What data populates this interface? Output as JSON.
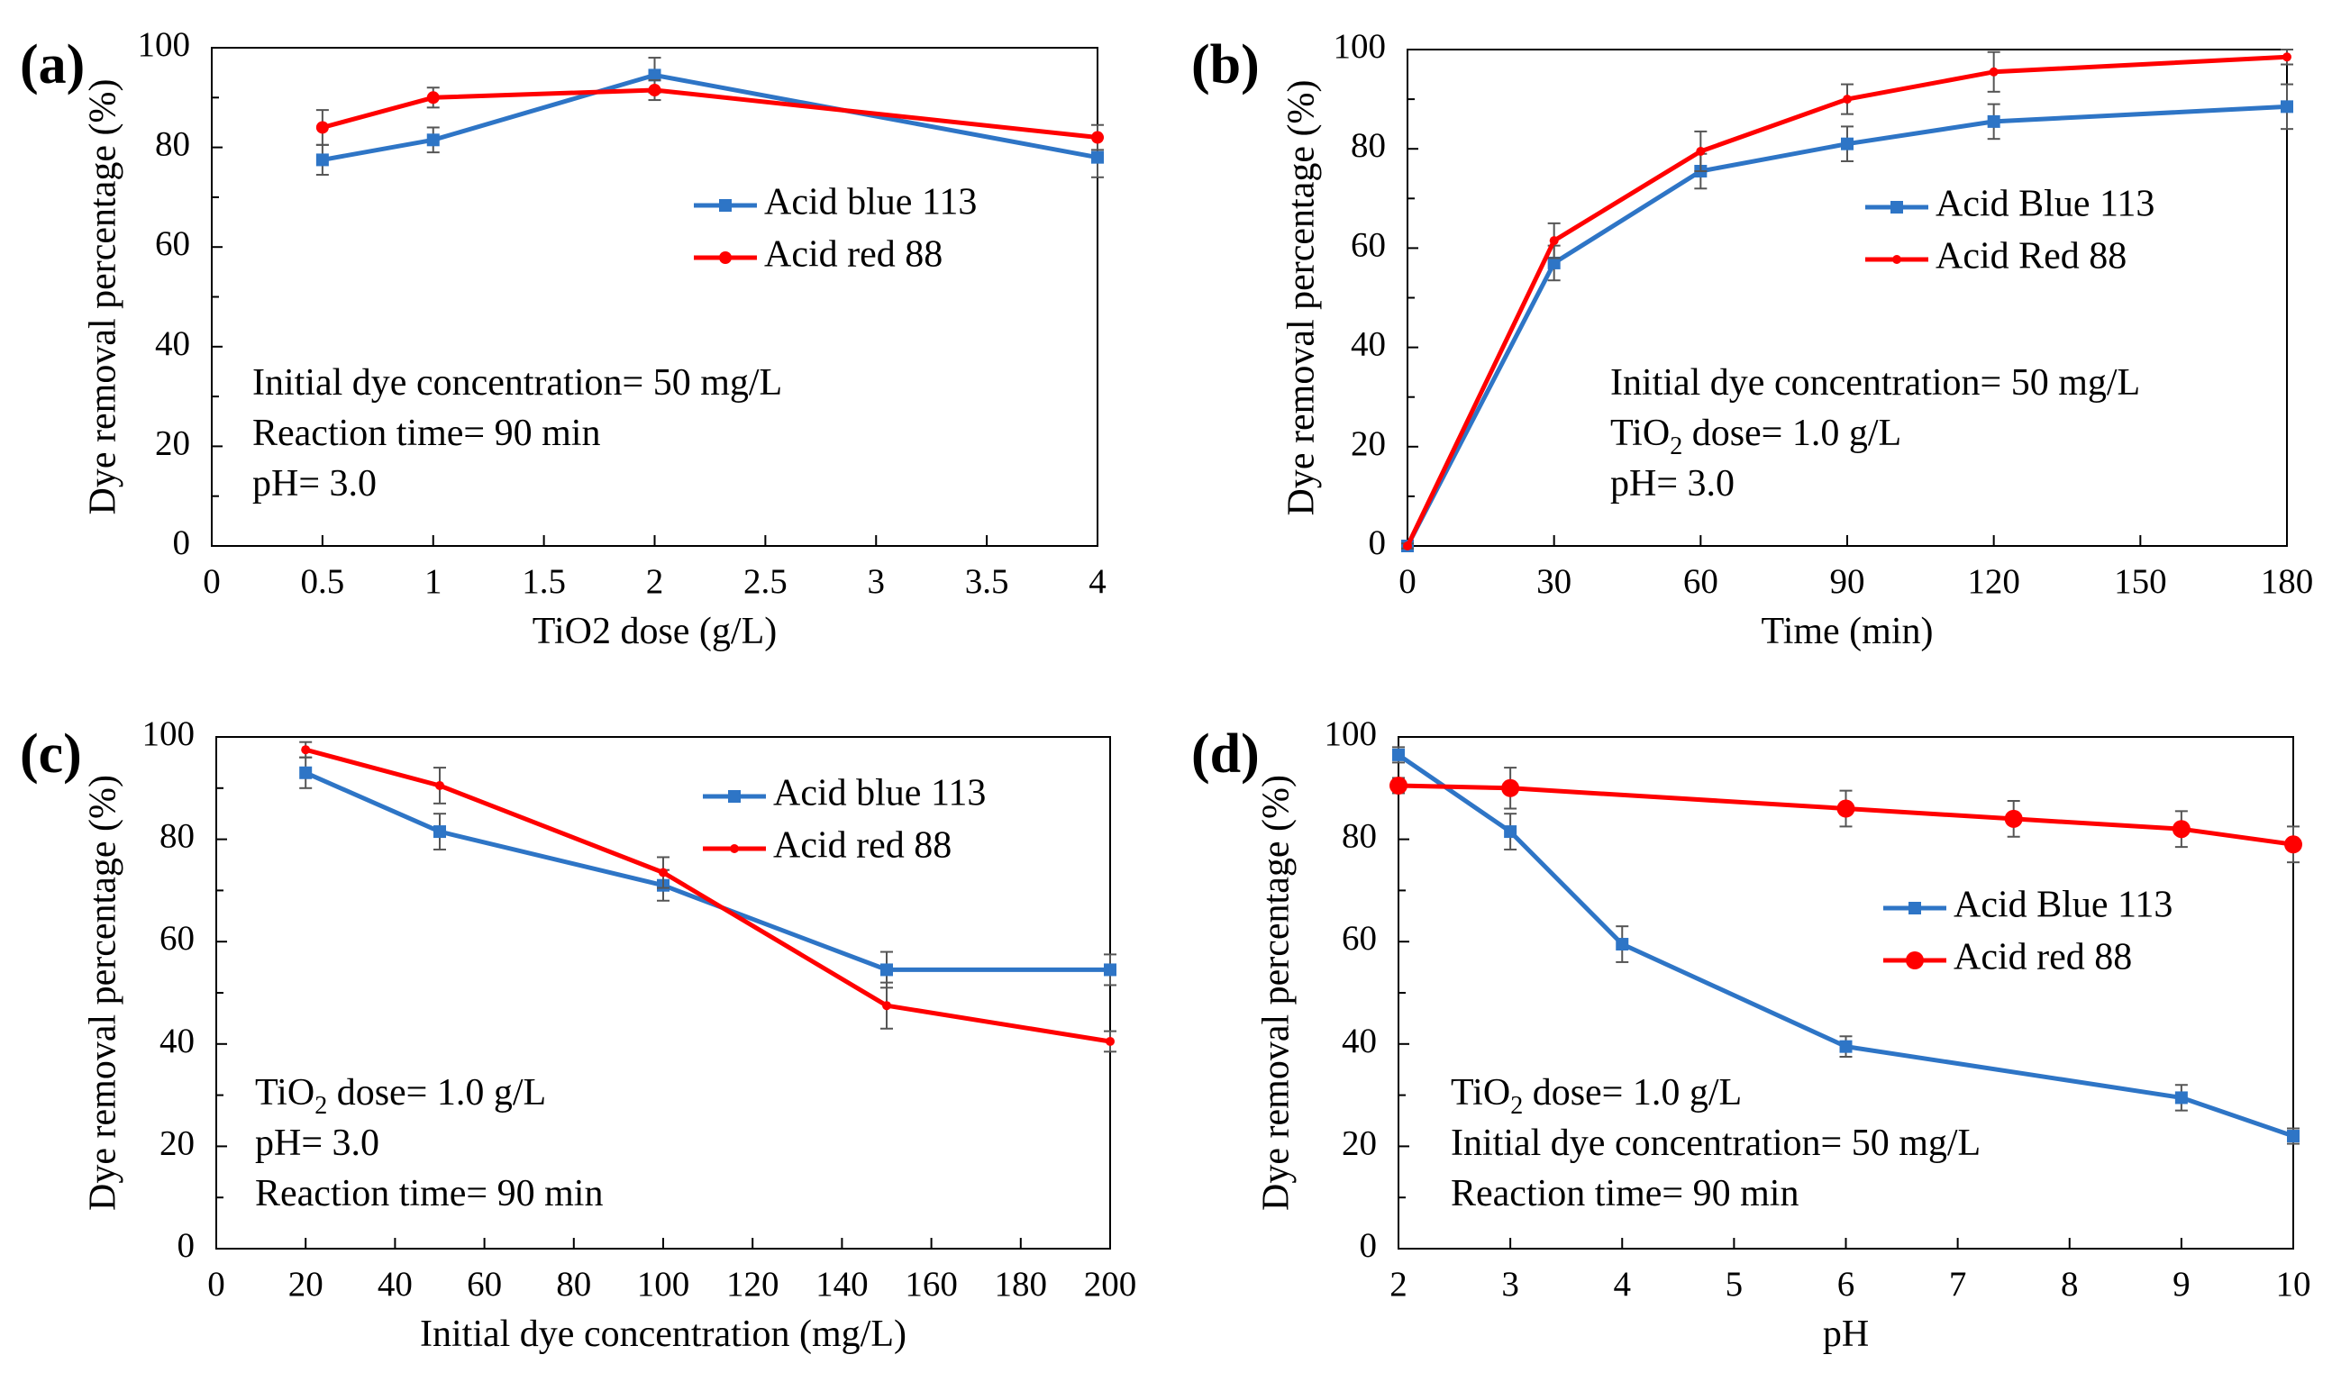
{
  "colors": {
    "blue": "#2e75c6",
    "red": "#ff0000",
    "axis": "#000000",
    "frame": "#000000",
    "errorbar": "#555555"
  },
  "chart_data": [
    {
      "panel": "(a)",
      "type": "line",
      "xlabel": "TiO2 dose (g/L)",
      "ylabel": "Dye removal percentage (%)",
      "xlim": [
        0,
        4
      ],
      "ylim": [
        0,
        100
      ],
      "xticks": [
        "0",
        "0.5",
        "1",
        "1.5",
        "2",
        "2.5",
        "3",
        "3.5",
        "4"
      ],
      "yticks": [
        "0",
        "20",
        "40",
        "60",
        "80",
        "100"
      ],
      "grid": false,
      "legend": "right-middle",
      "annotations": [
        {
          "parts": [
            {
              "t": "Initial dye concentration= 50 mg/L"
            }
          ]
        },
        {
          "parts": [
            {
              "t": "Reaction time= 90 min"
            }
          ]
        },
        {
          "parts": [
            {
              "t": "pH= 3.0"
            }
          ]
        }
      ],
      "series": [
        {
          "name": "Acid blue 113",
          "color": "#2e75c6",
          "marker": "square",
          "x": [
            0.5,
            1,
            2,
            4
          ],
          "y": [
            77.5,
            81.5,
            94.5,
            78
          ],
          "err": [
            3,
            2.5,
            3.5,
            4
          ]
        },
        {
          "name": "Acid red 88",
          "color": "#ff0000",
          "marker": "dot",
          "x": [
            0.5,
            1,
            2,
            4
          ],
          "y": [
            84,
            90,
            91.5,
            82
          ],
          "err": [
            3.5,
            2,
            2,
            2.5
          ]
        }
      ]
    },
    {
      "panel": "(b)",
      "type": "line",
      "xlabel": "Time (min)",
      "ylabel": "Dye removal percentage (%)",
      "xlim": [
        0,
        180
      ],
      "ylim": [
        0,
        100
      ],
      "xticks": [
        "0",
        "30",
        "60",
        "90",
        "120",
        "150",
        "180"
      ],
      "yticks": [
        "0",
        "20",
        "40",
        "60",
        "80",
        "100"
      ],
      "grid": false,
      "legend": "right-middle",
      "annotations": [
        {
          "parts": [
            {
              "t": "Initial dye concentration= 50 mg/L"
            }
          ]
        },
        {
          "parts": [
            {
              "t": "TiO"
            },
            {
              "t": "2",
              "sub": true
            },
            {
              "t": " dose= 1.0 g/L"
            }
          ]
        },
        {
          "parts": [
            {
              "t": "pH= 3.0"
            }
          ]
        }
      ],
      "series": [
        {
          "name": "Acid Blue 113",
          "color": "#2e75c6",
          "marker": "square",
          "x": [
            0,
            30,
            60,
            90,
            120,
            180
          ],
          "y": [
            0,
            57,
            75.5,
            81,
            85.5,
            88.5
          ],
          "err": [
            0.5,
            3.5,
            3.5,
            3.5,
            3.5,
            4.5
          ]
        },
        {
          "name": "Acid Red 88",
          "color": "#ff0000",
          "marker": "dot-small",
          "x": [
            0,
            30,
            60,
            90,
            120,
            180
          ],
          "y": [
            0,
            61.5,
            79.5,
            90,
            95.5,
            98.5
          ],
          "err": [
            0.5,
            3.5,
            4,
            3,
            4,
            1.5
          ]
        }
      ]
    },
    {
      "panel": "(c)",
      "type": "line",
      "xlabel": "Initial dye concentration (mg/L)",
      "ylabel": "Dye removal percentage (%)",
      "xlim": [
        0,
        200
      ],
      "ylim": [
        0,
        100
      ],
      "xticks": [
        "0",
        "20",
        "40",
        "60",
        "80",
        "100",
        "120",
        "140",
        "160",
        "180",
        "200"
      ],
      "yticks": [
        "0",
        "20",
        "40",
        "60",
        "80",
        "100"
      ],
      "grid": false,
      "legend": "top-right",
      "annotations": [
        {
          "parts": [
            {
              "t": "TiO"
            },
            {
              "t": "2",
              "sub": true
            },
            {
              "t": " dose= 1.0 g/L"
            }
          ]
        },
        {
          "parts": [
            {
              "t": "pH= 3.0"
            }
          ]
        },
        {
          "parts": [
            {
              "t": "Reaction time= 90 min"
            }
          ]
        }
      ],
      "series": [
        {
          "name": "Acid blue 113",
          "color": "#2e75c6",
          "marker": "square",
          "x": [
            20,
            50,
            100,
            150,
            200
          ],
          "y": [
            93,
            81.5,
            71,
            54.5,
            54.5
          ],
          "err": [
            3,
            3.5,
            3,
            3.5,
            3
          ]
        },
        {
          "name": "Acid red 88",
          "color": "#ff0000",
          "marker": "dot-small",
          "x": [
            20,
            50,
            100,
            150,
            200
          ],
          "y": [
            97.5,
            90.5,
            73.5,
            47.5,
            40.5
          ],
          "err": [
            1.5,
            3.5,
            3,
            4.5,
            2
          ]
        }
      ]
    },
    {
      "panel": "(d)",
      "type": "line",
      "xlabel": "pH",
      "ylabel": "Dye removal percentage (%)",
      "xlim": [
        2,
        10
      ],
      "ylim": [
        0,
        100
      ],
      "xticks": [
        "2",
        "3",
        "4",
        "5",
        "6",
        "7",
        "8",
        "9",
        "10"
      ],
      "yticks": [
        "0",
        "20",
        "40",
        "60",
        "80",
        "100"
      ],
      "grid": false,
      "legend": "right-middle",
      "annotations": [
        {
          "parts": [
            {
              "t": "TiO"
            },
            {
              "t": "2",
              "sub": true
            },
            {
              "t": " dose= 1.0 g/L"
            }
          ]
        },
        {
          "parts": [
            {
              "t": "Initial dye concentration= 50 mg/L"
            }
          ]
        },
        {
          "parts": [
            {
              "t": "Reaction time= 90 min"
            }
          ]
        }
      ],
      "series": [
        {
          "name": "Acid Blue 113",
          "color": "#2e75c6",
          "marker": "square",
          "x": [
            2,
            3,
            4,
            6,
            9,
            10
          ],
          "y": [
            96.5,
            81.5,
            59.5,
            39.5,
            29.5,
            22
          ],
          "err": [
            1.5,
            3.5,
            3.5,
            2,
            2.5,
            1.5
          ]
        },
        {
          "name": "Acid red 88",
          "color": "#ff0000",
          "marker": "dot-large",
          "x": [
            2,
            3,
            6,
            7.5,
            9,
            10
          ],
          "y": [
            90.5,
            90,
            86,
            84,
            82,
            79
          ],
          "err": [
            1.5,
            4,
            3.5,
            3.5,
            3.5,
            3.5
          ]
        }
      ]
    }
  ]
}
